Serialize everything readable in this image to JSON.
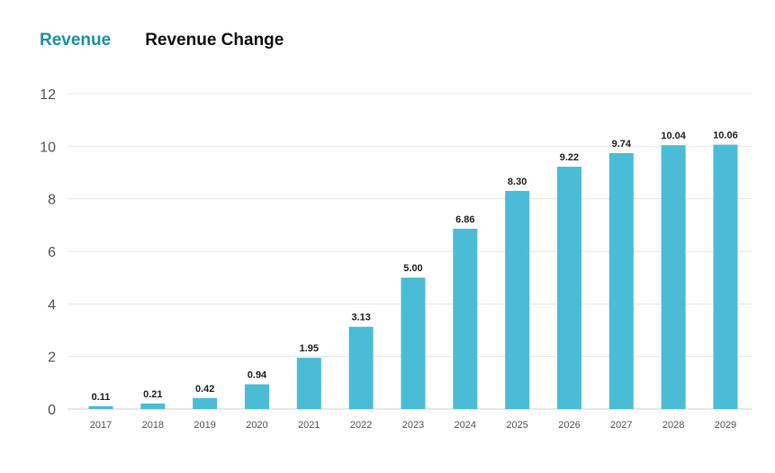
{
  "tabs": [
    {
      "label": "Revenue",
      "active": true
    },
    {
      "label": "Revenue Change",
      "active": false
    }
  ],
  "colors": {
    "bar": "#4bbcd5",
    "active_tab": "#1e8fa6",
    "grid": "#e6e6e6"
  },
  "chart_data": {
    "type": "bar",
    "title": "",
    "xlabel": "",
    "ylabel": "",
    "categories": [
      "2017",
      "2018",
      "2019",
      "2020",
      "2021",
      "2022",
      "2023",
      "2024",
      "2025",
      "2026",
      "2027",
      "2028",
      "2029"
    ],
    "values": [
      0.11,
      0.21,
      0.42,
      0.94,
      1.95,
      3.13,
      5.0,
      6.86,
      8.3,
      9.22,
      9.74,
      10.04,
      10.06
    ],
    "value_labels": [
      "0.11",
      "0.21",
      "0.42",
      "0.94",
      "1.95",
      "3.13",
      "5.00",
      "6.86",
      "8.30",
      "9.22",
      "9.74",
      "10.04",
      "10.06"
    ],
    "ylim": [
      0,
      12
    ],
    "yticks": [
      0,
      2,
      4,
      6,
      8,
      10,
      12
    ],
    "grid": true
  }
}
